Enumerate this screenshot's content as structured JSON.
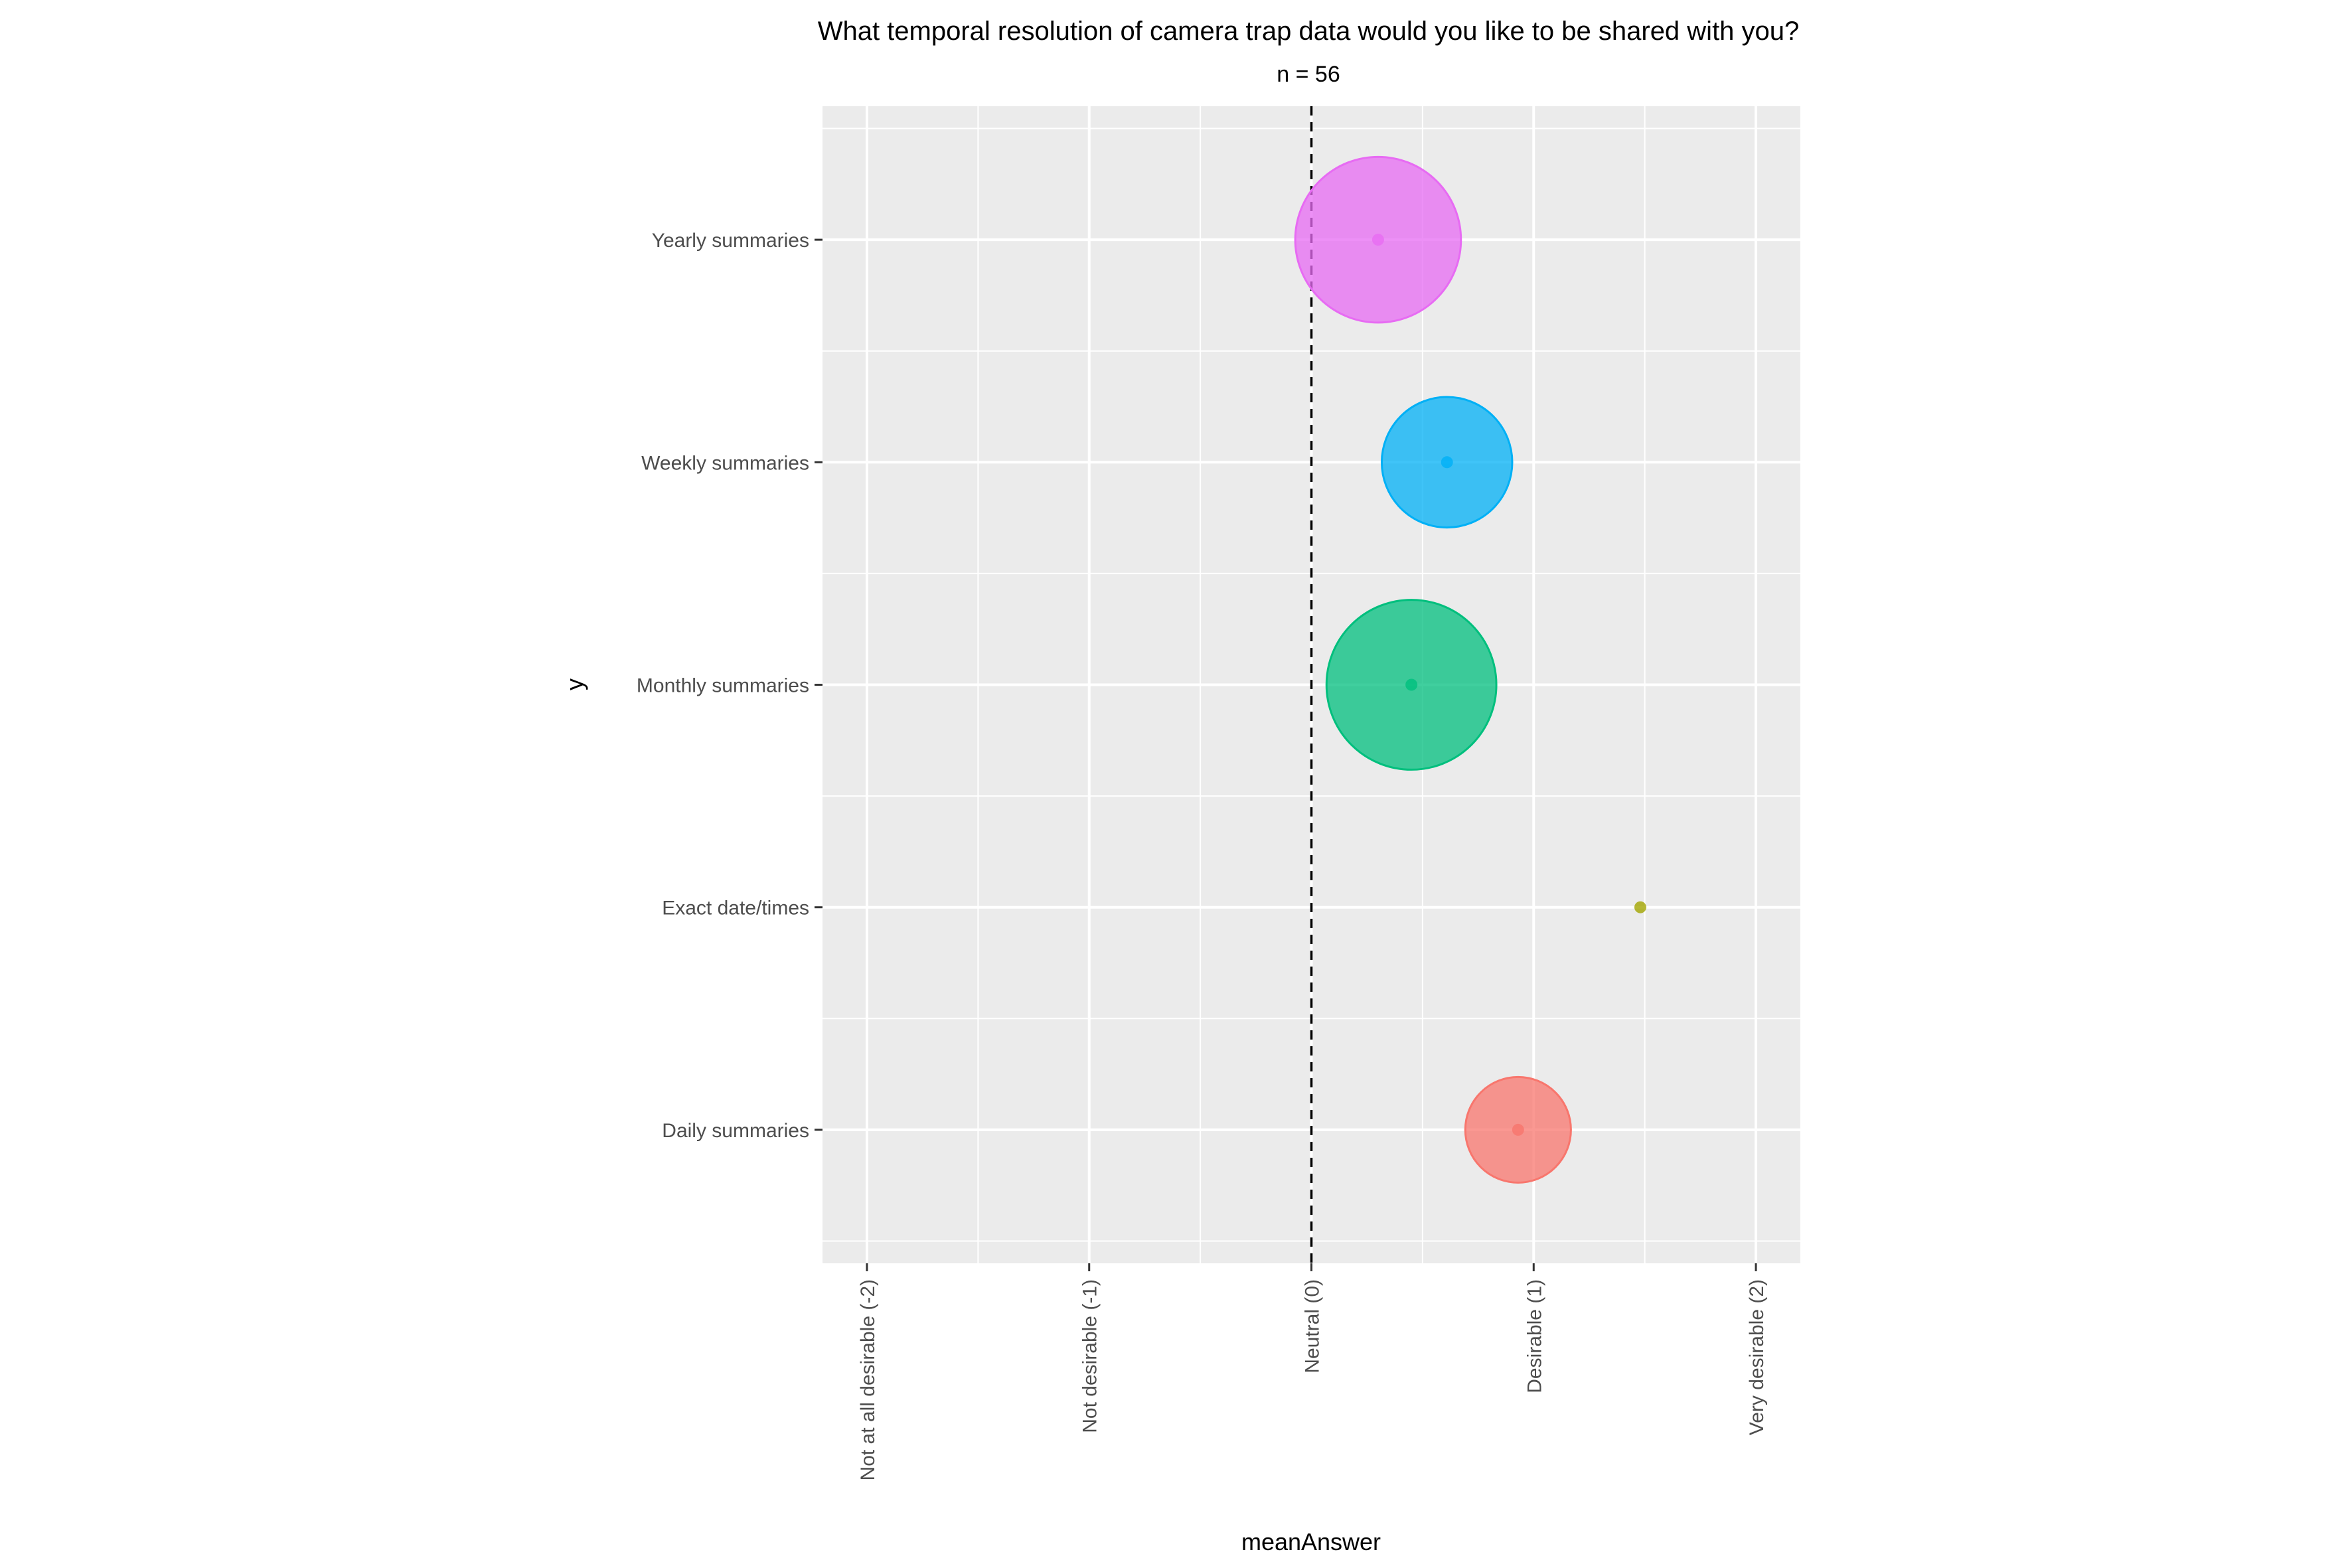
{
  "chart_data": {
    "type": "scatter",
    "title": "What temporal resolution of camera trap data would you like to be shared with you?",
    "subtitle": "n = 56",
    "xlabel": "meanAnswer",
    "ylabel": "y",
    "xlim": [
      -2.2,
      2.2
    ],
    "x_ticks": [
      {
        "value": -2,
        "label": "Not at all desirable (-2)"
      },
      {
        "value": -1,
        "label": "Not desirable (-1)"
      },
      {
        "value": 0,
        "label": "Neutral (0)"
      },
      {
        "value": 1,
        "label": "Desirable (1)"
      },
      {
        "value": 2,
        "label": "Very desirable (2)"
      }
    ],
    "categories": [
      "Daily summaries",
      "Exact date/times",
      "Monthly summaries",
      "Weekly summaries",
      "Yearly summaries"
    ],
    "reference_line": {
      "x": 0,
      "style": "dashed"
    },
    "grid": true,
    "legend": "none",
    "points": [
      {
        "category": "Daily summaries",
        "x": 0.93,
        "bubble_size": 0.51,
        "color": "#F8766D"
      },
      {
        "category": "Exact date/times",
        "x": 1.48,
        "bubble_size": 0.0,
        "color": "#A3A500"
      },
      {
        "category": "Monthly summaries",
        "x": 0.45,
        "bubble_size": 0.82,
        "color": "#00BF7D"
      },
      {
        "category": "Weekly summaries",
        "x": 0.61,
        "bubble_size": 0.63,
        "color": "#00B0F6"
      },
      {
        "category": "Yearly summaries",
        "x": 0.3,
        "bubble_size": 0.8,
        "color": "#E76BF3"
      }
    ]
  }
}
